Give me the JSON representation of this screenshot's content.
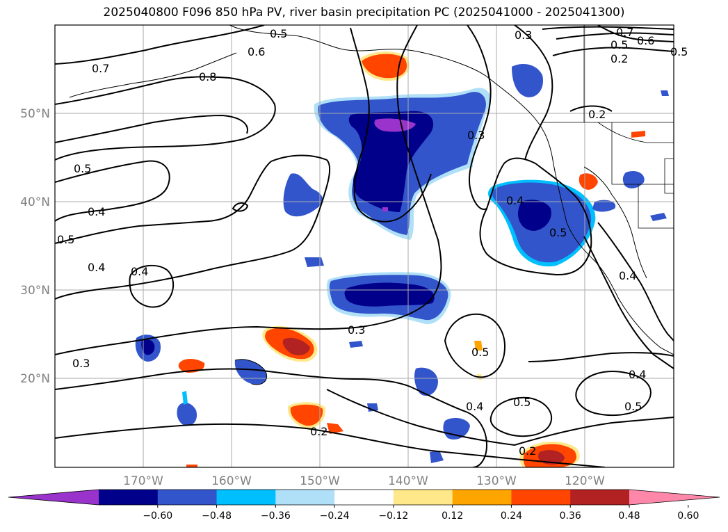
{
  "title": "2025040800 F096 850 hPa PV, river basin precipitation PC (2025041000 - 2025041300)",
  "lat_labels": [
    "50°N",
    "40°N",
    "30°N",
    "20°N"
  ],
  "lon_labels": [
    "170°W",
    "160°W",
    "150°W",
    "140°W",
    "130°W",
    "120°W"
  ],
  "contour_labels": [
    "0.7",
    "0.8",
    "0.6",
    "0.5",
    "0.5",
    "0.4",
    "0.5",
    "0.4",
    "0.4",
    "0.3",
    "0.3",
    "0.5",
    "0.4",
    "0.3",
    "0.3",
    "0.6",
    "0.7",
    "0.5",
    "0.2",
    "0.2",
    "0.4",
    "0.5",
    "0.5",
    "0.4",
    "0.5",
    "0.2",
    "0.2",
    "0.4",
    "0.5"
  ],
  "colorbar": {
    "colors": [
      "#9933cc",
      "#00008b",
      "#3355cc",
      "#00bfff",
      "#b0e0f8",
      "#ffffff",
      "#ffe88a",
      "#ffa500",
      "#ff4500",
      "#b22222",
      "#ff88aa"
    ],
    "tick_labels": [
      "−0.60",
      "−0.48",
      "−0.36",
      "−0.24",
      "−0.12",
      "0.12",
      "0.24",
      "0.36",
      "0.48",
      "0.60"
    ]
  }
}
